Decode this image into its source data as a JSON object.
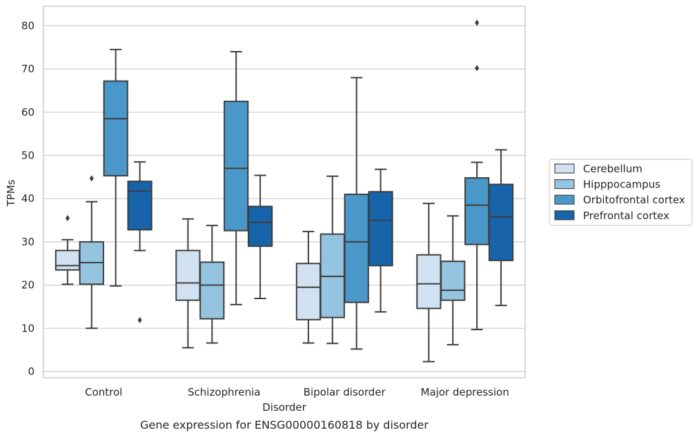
{
  "chart_data": {
    "type": "boxplot",
    "title": "",
    "caption": "Gene expression for ENSG00000160818 by disorder",
    "xlabel": "Disorder",
    "ylabel": "TPMs",
    "ylim": [
      -1.5,
      85
    ],
    "yticks": [
      0,
      10,
      20,
      30,
      40,
      50,
      60,
      70,
      80
    ],
    "grid": true,
    "legend_position": "right",
    "categories": [
      "Control",
      "Schizophrenia",
      "Bipolar disorder",
      "Major depression"
    ],
    "series": [
      {
        "name": "Cerebellum",
        "color": "#d0e1f2",
        "boxes": [
          {
            "whisker_low": 20.2,
            "q1": 23.5,
            "median": 24.5,
            "q3": 28.0,
            "whisker_high": 30.5,
            "outliers": [
              35.5
            ]
          },
          {
            "whisker_low": 5.5,
            "q1": 16.5,
            "median": 20.5,
            "q3": 28.0,
            "whisker_high": 35.3,
            "outliers": []
          },
          {
            "whisker_low": 6.6,
            "q1": 12.0,
            "median": 19.5,
            "q3": 25.0,
            "whisker_high": 32.4,
            "outliers": []
          },
          {
            "whisker_low": 2.3,
            "q1": 14.6,
            "median": 20.3,
            "q3": 27.0,
            "whisker_high": 38.9,
            "outliers": []
          }
        ]
      },
      {
        "name": "Hipppocampus",
        "color": "#94c4df",
        "boxes": [
          {
            "whisker_low": 10.0,
            "q1": 20.2,
            "median": 25.2,
            "q3": 30.0,
            "whisker_high": 39.3,
            "outliers": [
              44.7
            ]
          },
          {
            "whisker_low": 6.6,
            "q1": 12.2,
            "median": 20.0,
            "q3": 25.3,
            "whisker_high": 33.8,
            "outliers": []
          },
          {
            "whisker_low": 6.5,
            "q1": 12.5,
            "median": 22.0,
            "q3": 31.8,
            "whisker_high": 45.2,
            "outliers": []
          },
          {
            "whisker_low": 6.2,
            "q1": 16.5,
            "median": 18.8,
            "q3": 25.5,
            "whisker_high": 36.0,
            "outliers": []
          }
        ]
      },
      {
        "name": "Orbitofrontal cortex",
        "color": "#4a98c9",
        "boxes": [
          {
            "whisker_low": 19.8,
            "q1": 45.3,
            "median": 58.5,
            "q3": 67.2,
            "whisker_high": 74.5,
            "outliers": []
          },
          {
            "whisker_low": 15.5,
            "q1": 32.6,
            "median": 47.0,
            "q3": 62.5,
            "whisker_high": 74.0,
            "outliers": []
          },
          {
            "whisker_low": 5.2,
            "q1": 16.0,
            "median": 30.0,
            "q3": 41.0,
            "whisker_high": 68.0,
            "outliers": []
          },
          {
            "whisker_low": 9.7,
            "q1": 29.4,
            "median": 38.5,
            "q3": 44.8,
            "whisker_high": 48.4,
            "outliers": [
              70.2,
              80.7
            ]
          }
        ]
      },
      {
        "name": "Prefrontal cortex",
        "color": "#1764ab",
        "boxes": [
          {
            "whisker_low": 28.0,
            "q1": 32.8,
            "median": 41.7,
            "q3": 44.0,
            "whisker_high": 48.5,
            "outliers": [
              11.9
            ]
          },
          {
            "whisker_low": 16.9,
            "q1": 29.0,
            "median": 34.5,
            "q3": 38.2,
            "whisker_high": 45.4,
            "outliers": []
          },
          {
            "whisker_low": 13.8,
            "q1": 24.5,
            "median": 35.0,
            "q3": 41.6,
            "whisker_high": 46.8,
            "outliers": []
          },
          {
            "whisker_low": 15.3,
            "q1": 25.7,
            "median": 35.8,
            "q3": 43.3,
            "whisker_high": 51.3,
            "outliers": []
          }
        ]
      }
    ]
  },
  "style": {
    "grid_color": "#cccccc",
    "frame_color": "#cccccc",
    "line_color": "#3d3d3d",
    "legend_border": "#cccccc"
  }
}
